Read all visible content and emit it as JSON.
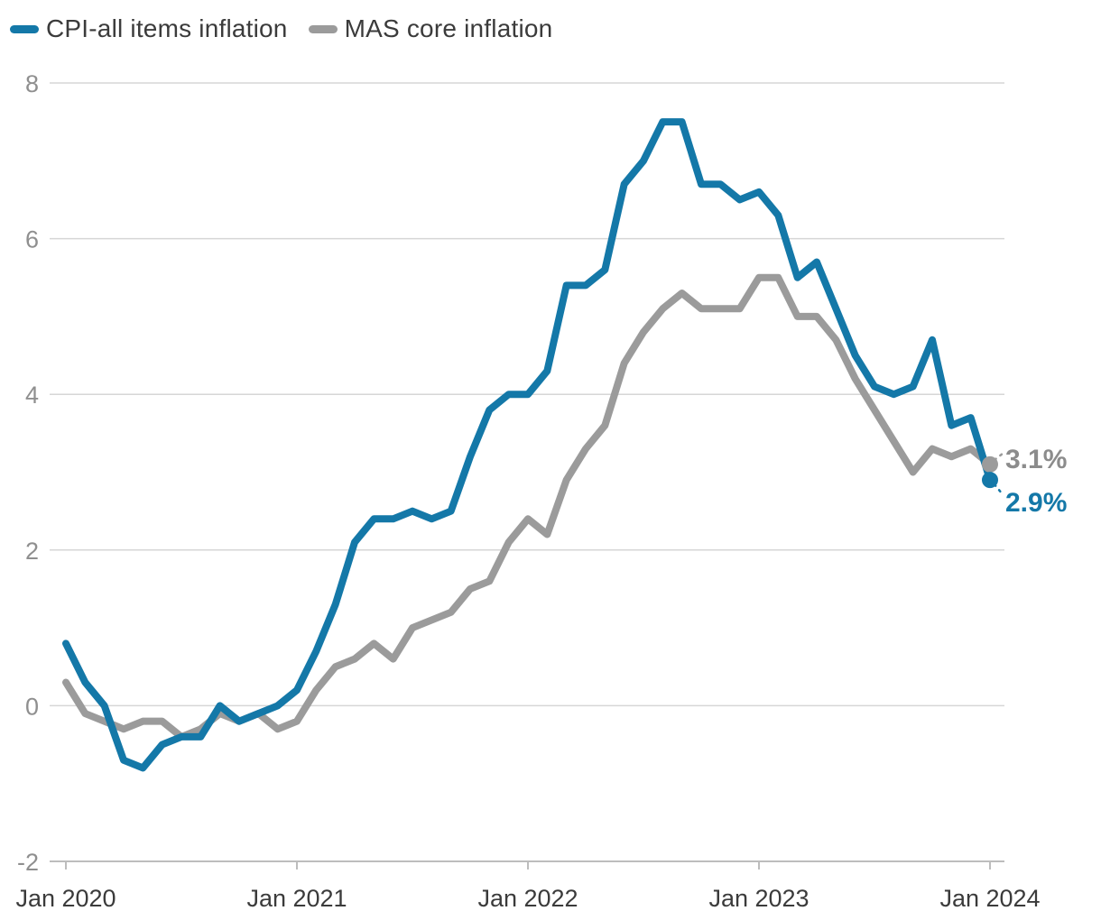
{
  "legend": {
    "items": [
      {
        "label": "CPI-all items inflation",
        "color": "#1478a8"
      },
      {
        "label": "MAS core inflation",
        "color": "#9b9b9b"
      }
    ]
  },
  "chart_data": {
    "type": "line",
    "title": "",
    "xlabel": "",
    "ylabel": "",
    "x_unit": "month",
    "x_range": [
      "Jan 2020",
      "Jan 2024"
    ],
    "x_tick_labels": [
      "Jan 2020",
      "Jan 2021",
      "Jan 2022",
      "Jan 2023",
      "Jan 2024"
    ],
    "x_tick_month_index": [
      0,
      12,
      24,
      36,
      48
    ],
    "y_ticks": [
      8,
      6,
      4,
      2,
      0,
      -2
    ],
    "y_tick_labels": [
      "8",
      "6",
      "4",
      "2",
      "0",
      "-2"
    ],
    "ylim": [
      -2,
      8
    ],
    "grid": "horizontal",
    "legend_position": "top-left",
    "series": [
      {
        "name": "CPI-all items inflation",
        "color": "#1478a8",
        "end_label": "2.9%",
        "end_label_color": "#1478a8",
        "values": [
          0.8,
          0.3,
          0.0,
          -0.7,
          -0.8,
          -0.5,
          -0.4,
          -0.4,
          0.0,
          -0.2,
          -0.1,
          0.0,
          0.2,
          0.7,
          1.3,
          2.1,
          2.4,
          2.4,
          2.5,
          2.4,
          2.5,
          3.2,
          3.8,
          4.0,
          4.0,
          4.3,
          5.4,
          5.4,
          5.6,
          6.7,
          7.0,
          7.5,
          7.5,
          6.7,
          6.7,
          6.5,
          6.6,
          6.3,
          5.5,
          5.7,
          5.1,
          4.5,
          4.1,
          4.0,
          4.1,
          4.7,
          3.6,
          3.7,
          2.9
        ]
      },
      {
        "name": "MAS core inflation",
        "color": "#9b9b9b",
        "end_label": "3.1%",
        "end_label_color": "#8c8c8c",
        "values": [
          0.3,
          -0.1,
          -0.2,
          -0.3,
          -0.2,
          -0.2,
          -0.4,
          -0.3,
          -0.1,
          -0.2,
          -0.1,
          -0.3,
          -0.2,
          0.2,
          0.5,
          0.6,
          0.8,
          0.6,
          1.0,
          1.1,
          1.2,
          1.5,
          1.6,
          2.1,
          2.4,
          2.2,
          2.9,
          3.3,
          3.6,
          4.4,
          4.8,
          5.1,
          5.3,
          5.1,
          5.1,
          5.1,
          5.5,
          5.5,
          5.0,
          5.0,
          4.7,
          4.2,
          3.8,
          3.4,
          3.0,
          3.3,
          3.2,
          3.3,
          3.1
        ]
      }
    ],
    "axis_colors": {
      "gridline": "#d6d6d6",
      "axis_line": "#bdbdbd",
      "y_label": "#8f8f8f",
      "x_label": "#3b3b3b"
    }
  }
}
